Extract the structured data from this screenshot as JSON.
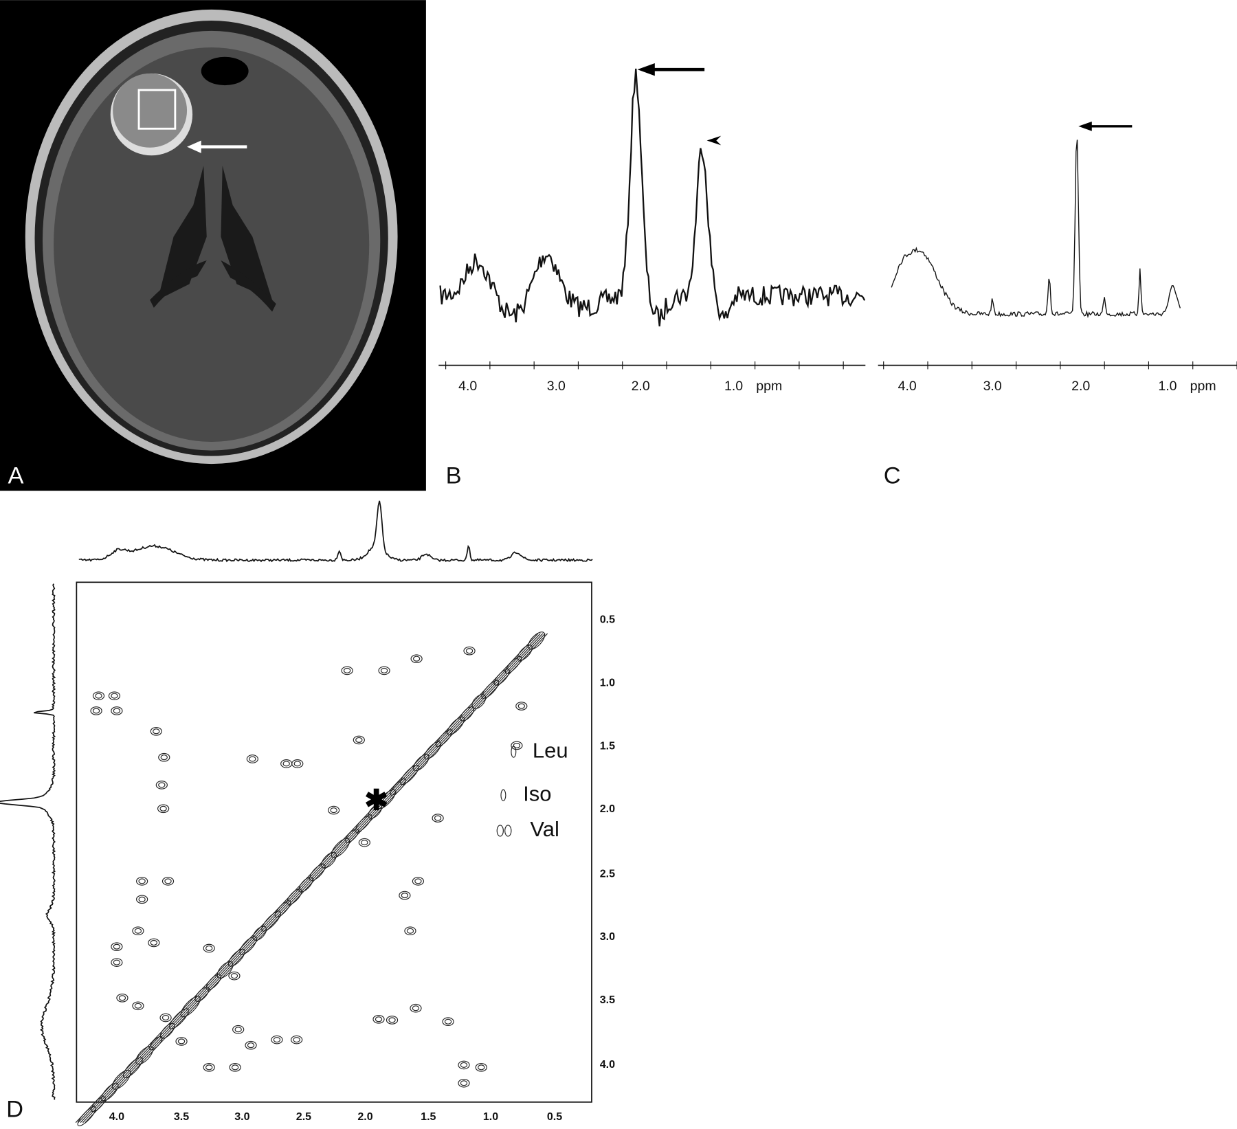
{
  "panels": {
    "A": {
      "label": "A"
    },
    "B": {
      "label": "B",
      "axis_labels": [
        "4.0",
        "3.0",
        "2.0",
        "1.0",
        "ppm"
      ]
    },
    "C": {
      "label": "C",
      "axis_labels": [
        "4.0",
        "3.0",
        "2.0",
        "1.0",
        "ppm"
      ]
    },
    "D": {
      "label": "D",
      "x_axis_labels": [
        "4.0",
        "3.5",
        "3.0",
        "2.5",
        "2.0",
        "1.5",
        "1.0",
        "0.5"
      ],
      "y_axis_labels": [
        "0.5",
        "1.0",
        "1.5",
        "2.0",
        "2.5",
        "3.0",
        "3.5",
        "4.0"
      ],
      "legend": [
        "Leu",
        "Iso",
        "Val"
      ]
    }
  }
}
